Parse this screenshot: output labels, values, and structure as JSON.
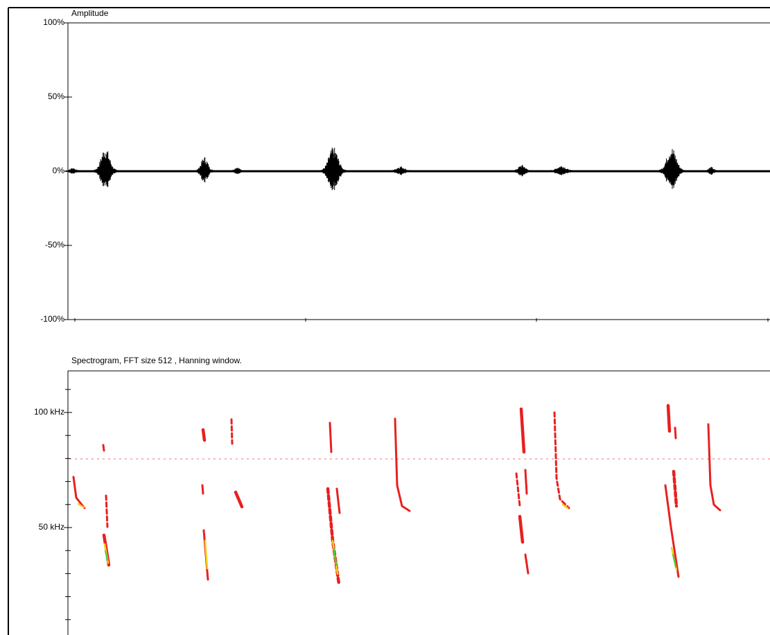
{
  "amplitude": {
    "title": "Amplitude",
    "ylim": [
      -100,
      100
    ],
    "yticks": [
      {
        "value": 100,
        "label": "100%"
      },
      {
        "value": 50,
        "label": "50%"
      },
      {
        "value": 0,
        "label": "0%"
      },
      {
        "value": -50,
        "label": "-50%"
      },
      {
        "value": -100,
        "label": "-100%"
      }
    ]
  },
  "spectrogram": {
    "title": "Spectrogram, FFT size 512 , Hanning window.",
    "ylim": [
      3.31,
      118.07
    ],
    "yticks": [
      {
        "value": 100,
        "label": "100 kHz"
      },
      {
        "value": 50,
        "label": "50 kHz"
      }
    ],
    "minor_yticks": [
      110,
      90,
      80,
      70,
      60,
      40,
      30,
      20,
      10
    ]
  }
}
